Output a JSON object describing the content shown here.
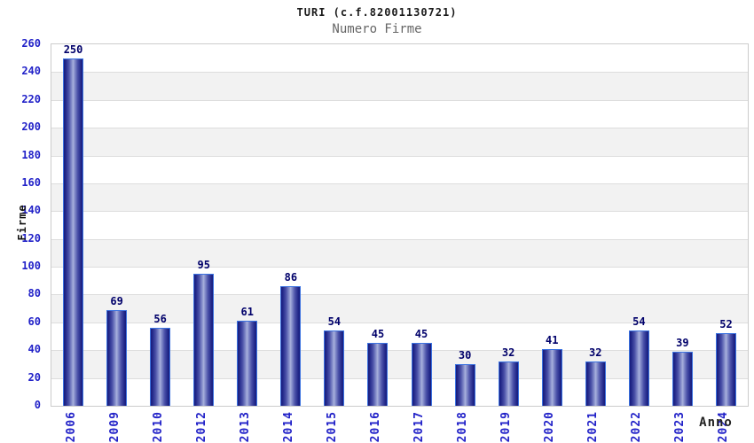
{
  "header": {
    "title": "TURI (c.f.82001130721)",
    "subtitle": "Numero Firme"
  },
  "chart_data": {
    "type": "bar",
    "title": "TURI (c.f.82001130721)",
    "subtitle": "Numero Firme",
    "categories": [
      "2006",
      "2009",
      "2010",
      "2012",
      "2013",
      "2014",
      "2015",
      "2016",
      "2017",
      "2018",
      "2019",
      "2020",
      "2021",
      "2022",
      "2023",
      "2024"
    ],
    "values": [
      250,
      69,
      56,
      95,
      61,
      86,
      54,
      45,
      45,
      30,
      32,
      41,
      32,
      54,
      39,
      52
    ],
    "xlabel": "Anno",
    "ylabel": "Firme",
    "ylim": [
      0,
      260
    ],
    "ytick_step": 20,
    "yticks": [
      0,
      20,
      40,
      60,
      80,
      100,
      120,
      140,
      160,
      180,
      200,
      220,
      240,
      260
    ],
    "grid": "horizontal-bands-alternating",
    "legend_position": "none",
    "colors": {
      "tick_label": "#2121c8",
      "value_label": "#00006a",
      "bar_dark": "#171b7d",
      "bar_light": "#a9b2dd",
      "bar_border": "#3b72e0",
      "band_gray": "#f2f2f2",
      "band_white": "#ffffff",
      "gridline": "#dddddd",
      "plot_border": "#cccccc",
      "title": "#1a1a1a",
      "subtitle": "#666666",
      "axis_title": "#222222"
    }
  }
}
